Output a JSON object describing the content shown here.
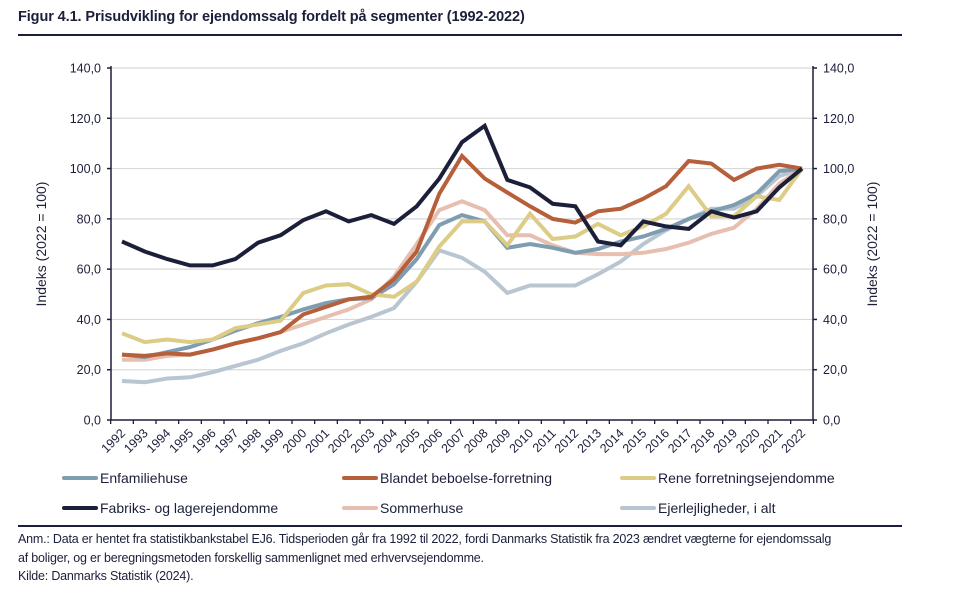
{
  "figure": {
    "title": "Figur 4.1. Prisudvikling for ejendomssalg fordelt på segmenter (1992-2022)",
    "note_line1": "Anm.: Data er hentet fra statistikbankstabel EJ6. Tidsperioden går fra 1992 til 2022, fordi Danmarks Statistik fra 2023 ændret vægterne for ejendomssalg",
    "note_line2": "af boliger, og er beregningsmetoden forskellig sammenlignet med erhvervsejendomme.",
    "source": "Kilde: Danmarks Statistik (2024)."
  },
  "chart_data": {
    "type": "line",
    "title": "Figur 4.1. Prisudvikling for ejendomssalg fordelt på segmenter (1992-2022)",
    "xlabel": "",
    "ylabel": "Indeks (2022 = 100)",
    "ylabel_right": "Indeks (2022 = 100)",
    "ylim": [
      0,
      140
    ],
    "yticks": [
      0,
      20,
      40,
      60,
      80,
      100,
      120,
      140
    ],
    "ytick_labels": [
      "0,0",
      "20,0",
      "40,0",
      "60,0",
      "80,0",
      "100,0",
      "120,0",
      "140,0"
    ],
    "grid": true,
    "legend_position": "bottom",
    "x": [
      "1992",
      "1993",
      "1994",
      "1995",
      "1996",
      "1997",
      "1998",
      "1999",
      "2000",
      "2001",
      "2002",
      "2003",
      "2004",
      "2005",
      "2006",
      "2007",
      "2008",
      "2009",
      "2010",
      "2011",
      "2012",
      "2013",
      "2014",
      "2015",
      "2016",
      "2017",
      "2018",
      "2019",
      "2020",
      "2021",
      "2022"
    ],
    "series": [
      {
        "name": "Enfamiliehuse",
        "color": "#7f9db1",
        "values": [
          26,
          25,
          27,
          29,
          32,
          35.5,
          38.5,
          41,
          44,
          46.5,
          48,
          48.5,
          54,
          64,
          77.5,
          81.5,
          79,
          68.5,
          70,
          68.5,
          66.5,
          68,
          71,
          73,
          76,
          80,
          83,
          85.5,
          90,
          99,
          100
        ]
      },
      {
        "name": "Blandet beboelse-forretning",
        "color": "#b5603a",
        "values": [
          26,
          25.5,
          26.5,
          26,
          28,
          30.5,
          32.5,
          35,
          42,
          45,
          48,
          49,
          56,
          67,
          90,
          105,
          96,
          90.5,
          85,
          80,
          78.5,
          83,
          84,
          88,
          93,
          103,
          102,
          95.5,
          100,
          101.5,
          100
        ]
      },
      {
        "name": "Rene forretningsejendomme",
        "color": "#ddcc85",
        "values": [
          34.5,
          31,
          32,
          31,
          32,
          36.5,
          38,
          39.5,
          50.5,
          53.5,
          54,
          50,
          49,
          55,
          69,
          79,
          79,
          69.5,
          82,
          72,
          73,
          78,
          73.5,
          77,
          82,
          93,
          81,
          81,
          89,
          87.5,
          100
        ]
      },
      {
        "name": "Fabriks- og lagerejendomme",
        "color": "#1c1f3a",
        "values": [
          71,
          67,
          64,
          61.5,
          61.5,
          64,
          70.5,
          73.5,
          79.5,
          83,
          79,
          81.5,
          78,
          85,
          96,
          110.5,
          117,
          95.5,
          92.5,
          86,
          85,
          71,
          69.5,
          79,
          77,
          76,
          83,
          80.5,
          83,
          92.5,
          100
        ]
      },
      {
        "name": "Sommerhuse",
        "color": "#e6bfb0",
        "values": [
          24,
          24,
          25.5,
          26,
          28,
          30.5,
          32.5,
          35,
          38,
          41,
          44,
          48,
          57,
          70,
          83.5,
          87,
          83.5,
          73.5,
          73.5,
          69.5,
          66.5,
          66,
          66,
          66.5,
          68,
          70.5,
          74,
          76.5,
          84,
          94,
          100
        ]
      },
      {
        "name": "Ejerlejligheder, i alt",
        "color": "#b9c5d0",
        "values": [
          15.5,
          15,
          16.5,
          17,
          19,
          21.5,
          24,
          27.5,
          30.5,
          34.5,
          38,
          41,
          44.5,
          55,
          67.5,
          64.5,
          59,
          50.5,
          53.5,
          53.5,
          53.5,
          58,
          63,
          70,
          75.5,
          80,
          84,
          84,
          89,
          97,
          100
        ]
      }
    ]
  },
  "legend": {
    "items": [
      {
        "label": "Enfamiliehuse",
        "color": "#7f9db1"
      },
      {
        "label": "Blandet beboelse-forretning",
        "color": "#b5603a"
      },
      {
        "label": "Rene forretningsejendomme",
        "color": "#ddcc85"
      },
      {
        "label": "Fabriks- og lagerejendomme",
        "color": "#1c1f3a"
      },
      {
        "label": "Sommerhuse",
        "color": "#e6bfb0"
      },
      {
        "label": "Ejerlejligheder, i alt",
        "color": "#b9c5d0"
      }
    ]
  }
}
